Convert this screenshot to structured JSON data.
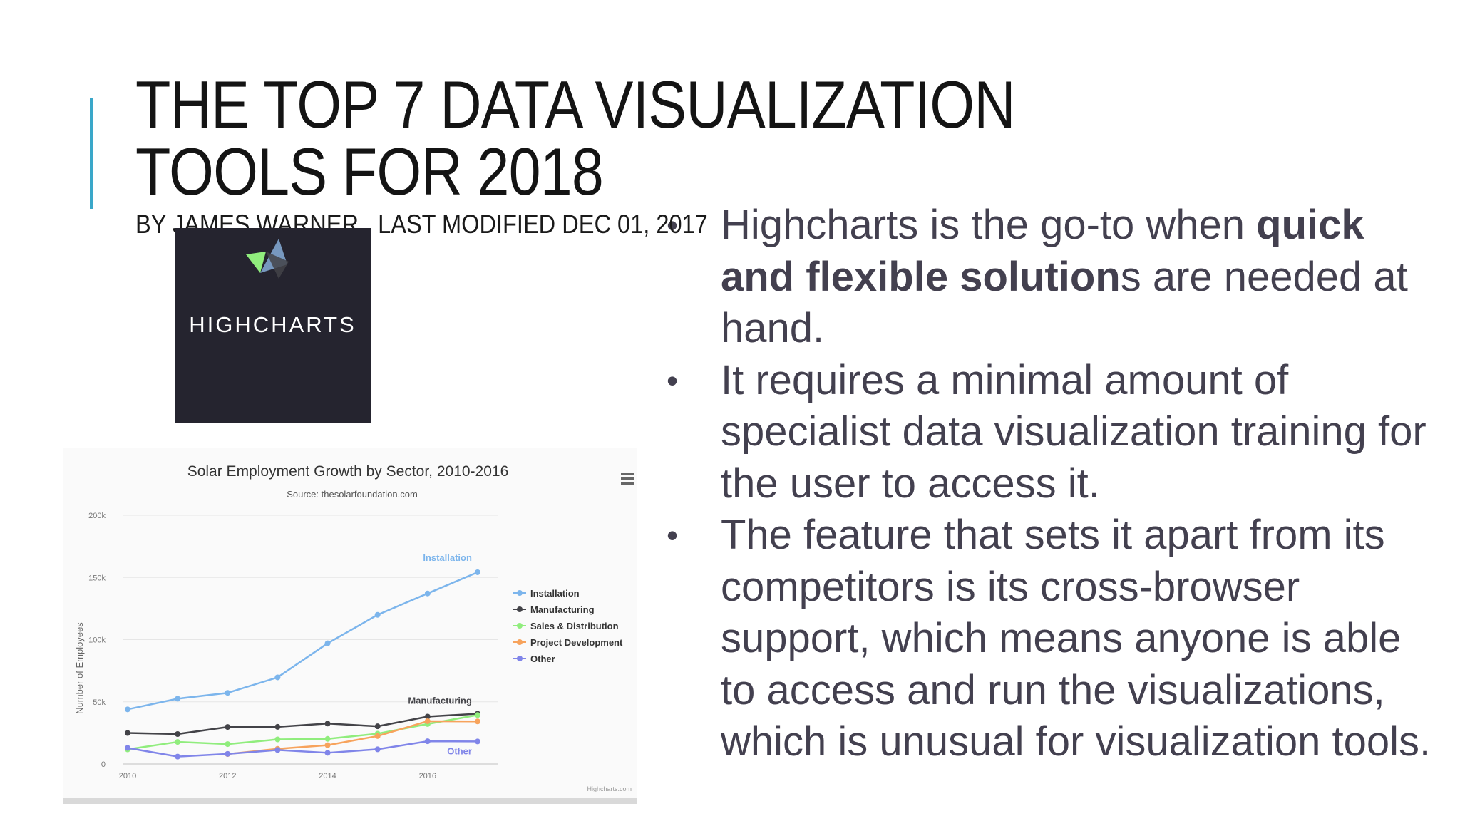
{
  "slide": {
    "title": "THE TOP 7 DATA VISUALIZATION TOOLS FOR 2018",
    "byline": "BY JAMES WARNER , LAST MODIFIED DEC 01, 2017"
  },
  "logo": {
    "wordmark": "HIGHCHARTS",
    "colors": {
      "background": "#25242f",
      "green": "#90ed7d",
      "blue": "#7798bf",
      "dark_blue": "#434348"
    }
  },
  "bullets": {
    "symbol": "•",
    "items": [
      {
        "pre": "Highcharts is the go-to when ",
        "bold": "quick and flexible solution",
        "post": "s are needed at hand."
      },
      {
        "pre": " It requires a minimal amount of specialist data visualization training for the user to access it.",
        "bold": "",
        "post": ""
      },
      {
        "pre": " The feature that sets it apart from its competitors is its cross-browser support, which means anyone is able to access and run the visualizations, which is unusual for visualization tools.",
        "bold": "",
        "post": ""
      }
    ]
  },
  "chart_data": {
    "type": "line",
    "title": "Solar Employment Growth by Sector, 2010-2016",
    "subtitle": "Source: thesolarfoundation.com",
    "ylabel": "Number of Employees",
    "xlabel": "",
    "x": [
      2010,
      2011,
      2012,
      2013,
      2014,
      2015,
      2016,
      2017
    ],
    "x_ticks": [
      "2010",
      "2012",
      "2014",
      "2016"
    ],
    "x_tick_values": [
      2010,
      2012,
      2014,
      2016
    ],
    "y_ticks": [
      "0",
      "50k",
      "100k",
      "150k",
      "200k"
    ],
    "y_tick_values": [
      0,
      50000,
      100000,
      150000,
      200000
    ],
    "xlim": [
      2009.9,
      2017.4
    ],
    "ylim": [
      0,
      200000
    ],
    "grid": true,
    "legend_position": "right",
    "menu_icon": "hamburger-menu-icon",
    "credits": "Highcharts.com",
    "series": [
      {
        "name": "Installation",
        "color": "#7cb5ec",
        "end_label": "Installation",
        "values": [
          43934,
          52503,
          57177,
          69658,
          97031,
          119931,
          137133,
          154175
        ]
      },
      {
        "name": "Manufacturing",
        "color": "#434348",
        "end_label": "Manufacturing",
        "values": [
          24916,
          24064,
          29742,
          29851,
          32490,
          30282,
          38121,
          40434
        ]
      },
      {
        "name": "Sales & Distribution",
        "color": "#90ed7d",
        "end_label": "",
        "values": [
          11744,
          17722,
          16005,
          19771,
          20185,
          24377,
          32147,
          39387
        ]
      },
      {
        "name": "Project Development",
        "color": "#f7a35c",
        "end_label": "",
        "values": [
          null,
          null,
          7988,
          12169,
          15112,
          22452,
          34400,
          34227
        ]
      },
      {
        "name": "Other",
        "color": "#8085e9",
        "end_label": "Other",
        "values": [
          12908,
          5948,
          8105,
          11248,
          8989,
          11816,
          18274,
          18111
        ]
      }
    ]
  }
}
